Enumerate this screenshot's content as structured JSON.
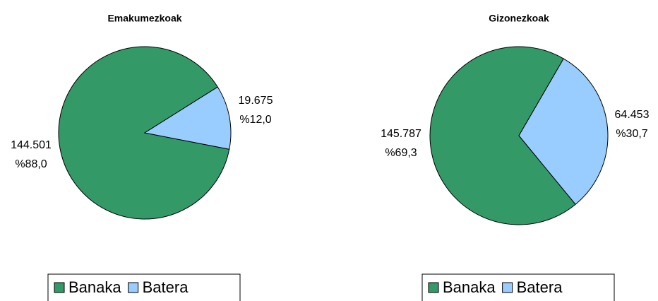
{
  "chart_data": [
    {
      "type": "pie",
      "title": "Emakumezkoak",
      "categories": [
        "Banaka",
        "Batera"
      ],
      "values": [
        144501,
        19675
      ],
      "value_labels": [
        "144.501",
        "19.675"
      ],
      "percent_labels": [
        "%88,0",
        "%12,0"
      ],
      "colors": [
        "#339966",
        "#99ccff"
      ]
    },
    {
      "type": "pie",
      "title": "Gizonezkoak",
      "categories": [
        "Banaka",
        "Batera"
      ],
      "values": [
        145787,
        64453
      ],
      "value_labels": [
        "145.787",
        "64.453"
      ],
      "percent_labels": [
        "%69,3",
        "%30,7"
      ],
      "colors": [
        "#339966",
        "#99ccff"
      ]
    }
  ]
}
